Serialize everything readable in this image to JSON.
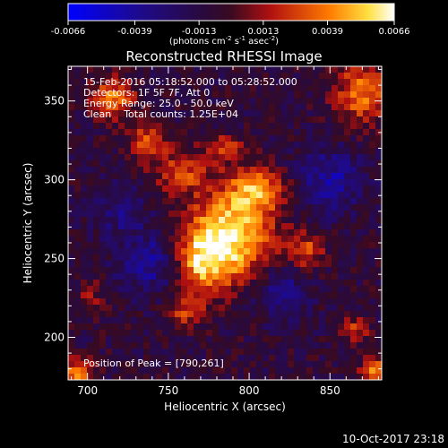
{
  "chart_data": {
    "type": "heatmap",
    "title": "Reconstructed RHESSI Image",
    "xlabel": "Heliocentric X (arcsec)",
    "ylabel": "Heliocentric Y (arcsec)",
    "xlim": [
      688,
      882
    ],
    "ylim": [
      173,
      372
    ],
    "x_ticks": [
      700,
      750,
      800,
      850
    ],
    "y_ticks": [
      200,
      250,
      300,
      350
    ],
    "colorbar": {
      "range": [
        -0.0066,
        0.0066
      ],
      "ticks": [
        "-0.0066",
        "-0.0039",
        "-0.0013",
        "0.0013",
        "0.0039",
        "0.0066"
      ],
      "units_label": "(photons cm",
      "units_exp1": "-2",
      "units_mid": " s",
      "units_exp2": "-1",
      "units_mid2": " asec",
      "units_exp3": "-2",
      "units_end": ")",
      "colormap": "blue-black-red-yellow-white"
    },
    "annotations": {
      "line1": "15-Feb-2016 05:18:52.000 to 05:28:52.000",
      "line2": "Detectors: 1F 5F 7F, Att 0",
      "line3": "Energy Range: 25.0 - 50.0 keV",
      "line4": "Clean    Total counts: 1.25E+04",
      "peak": "Position of Peak = [790,261]"
    },
    "peak": [
      790,
      261
    ],
    "sources": [
      {
        "x": 790,
        "y": 265,
        "amp": 0.0066,
        "sx": 18,
        "sy": 20
      },
      {
        "x": 770,
        "y": 248,
        "amp": 0.005,
        "sx": 12,
        "sy": 16
      },
      {
        "x": 805,
        "y": 295,
        "amp": 0.0045,
        "sx": 12,
        "sy": 10
      },
      {
        "x": 758,
        "y": 305,
        "amp": 0.0035,
        "sx": 12,
        "sy": 10
      },
      {
        "x": 785,
        "y": 320,
        "amp": 0.0032,
        "sx": 8,
        "sy": 6
      },
      {
        "x": 737,
        "y": 325,
        "amp": 0.0035,
        "sx": 8,
        "sy": 9
      },
      {
        "x": 716,
        "y": 352,
        "amp": 0.0045,
        "sx": 10,
        "sy": 9
      },
      {
        "x": 835,
        "y": 255,
        "amp": 0.0035,
        "sx": 8,
        "sy": 8
      },
      {
        "x": 870,
        "y": 355,
        "amp": 0.0045,
        "sx": 12,
        "sy": 14
      },
      {
        "x": 694,
        "y": 178,
        "amp": 0.005,
        "sx": 6,
        "sy": 6
      },
      {
        "x": 878,
        "y": 178,
        "amp": 0.005,
        "sx": 6,
        "sy": 6
      },
      {
        "x": 866,
        "y": 205,
        "amp": 0.003,
        "sx": 6,
        "sy": 6
      },
      {
        "x": 760,
        "y": 215,
        "amp": 0.0028,
        "sx": 8,
        "sy": 6
      },
      {
        "x": 702,
        "y": 225,
        "amp": 0.002,
        "sx": 6,
        "sy": 8
      },
      {
        "x": 740,
        "y": 248,
        "amp": -0.003,
        "sx": 14,
        "sy": 14
      },
      {
        "x": 850,
        "y": 300,
        "amp": -0.003,
        "sx": 14,
        "sy": 14
      },
      {
        "x": 820,
        "y": 230,
        "amp": -0.0025,
        "sx": 12,
        "sy": 12
      },
      {
        "x": 720,
        "y": 280,
        "amp": -0.002,
        "sx": 10,
        "sy": 12
      }
    ]
  },
  "footer": {
    "timestamp": "10-Oct-2017 23:18"
  }
}
